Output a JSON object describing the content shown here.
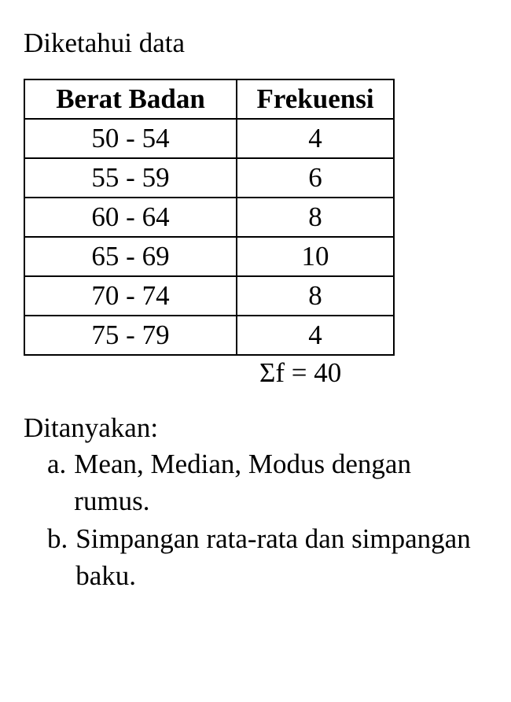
{
  "intro_text": "Diketahui data",
  "table": {
    "columns": [
      "Berat Badan",
      "Frekuensi"
    ],
    "rows": [
      [
        "50 - 54",
        "4"
      ],
      [
        "55 - 59",
        "6"
      ],
      [
        "60 - 64",
        "8"
      ],
      [
        "65 - 69",
        "10"
      ],
      [
        "70 - 74",
        "8"
      ],
      [
        "75 - 79",
        "4"
      ]
    ],
    "border_color": "#000000",
    "background_color": "#ffffff",
    "header_font_weight": "bold",
    "font_size": 35
  },
  "sum_label": "Σf = 40",
  "question_heading": "Ditanyakan:",
  "questions": [
    {
      "marker": "a.",
      "text": "Mean, Median, Modus dengan rumus."
    },
    {
      "marker": "b.",
      "text": "Simpangan rata-rata dan simpangan baku."
    }
  ],
  "style": {
    "font_family": "Times New Roman",
    "text_color": "#000000",
    "background_color": "#ffffff",
    "body_font_size": 35
  }
}
